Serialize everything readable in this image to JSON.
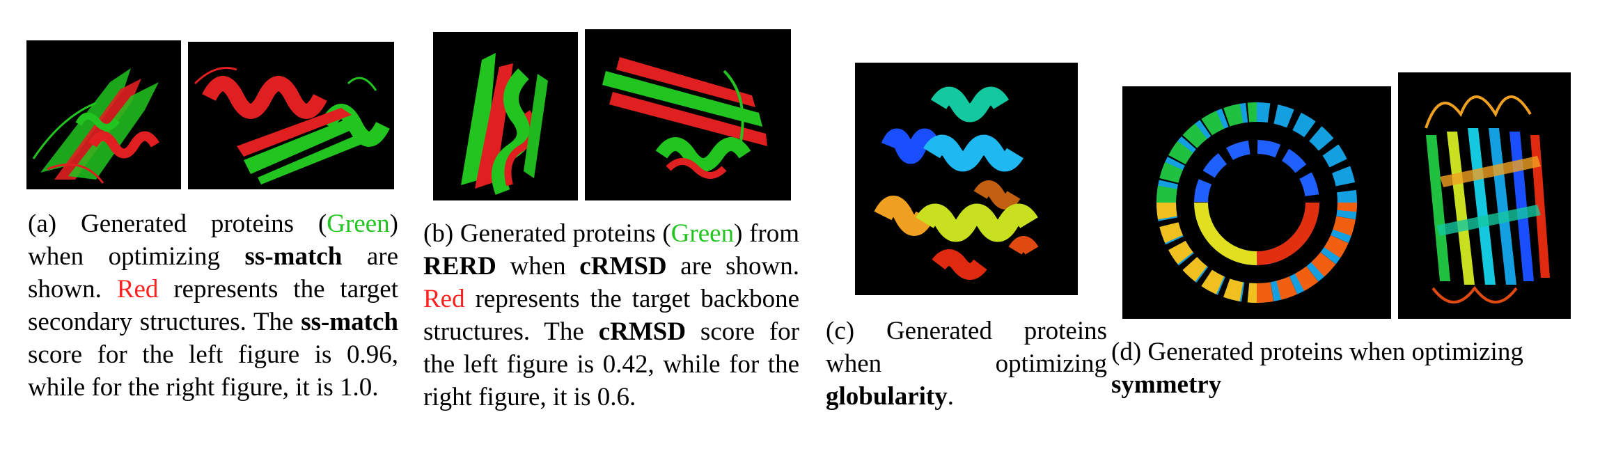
{
  "figure": {
    "captions": {
      "a": {
        "label": "(a)",
        "t1": "Generated proteins (",
        "green": "Green",
        "t2": ") when optimizing ",
        "b1": "ss-match",
        "t3": " are shown. ",
        "red": "Red",
        "t4": " represents the target secondary structures. The ",
        "b2": "ss-match",
        "t5": " score for the left figure is 0.96, while for the right figure, it is 1.0."
      },
      "b": {
        "label": "(b)",
        "t1": "Generated proteins (",
        "green": "Green",
        "t2": ") from ",
        "b1": "RERD",
        "t3": " when ",
        "b2": "cRMSD",
        "t4": " are shown. ",
        "red": "Red",
        "t5": " represents the target backbone structures. The ",
        "b3": "cRMSD",
        "t6": " score for the left figure is 0.42, while for the right figure, it is 0.6."
      },
      "c": {
        "label": "(c)",
        "t1": "Generated proteins when optimizing ",
        "b1": "globularity",
        "t2": "."
      },
      "d": {
        "label": "(d)",
        "t1": "Generated proteins when optimizing ",
        "b1": "symmetry"
      }
    },
    "colors": {
      "generated": "#22c41f",
      "target": "#ff2020",
      "background": "#000000"
    }
  }
}
